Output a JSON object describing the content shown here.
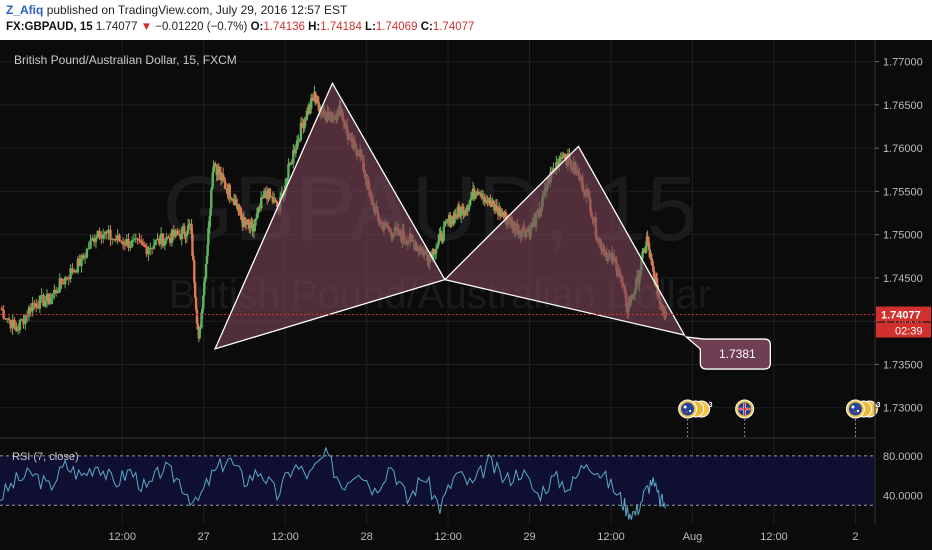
{
  "header": {
    "author": "Z_Afiq",
    "published_text": "published on TradingView.com, July 29, 2016 12:57 EST",
    "symbol": "FX:GBPAUD, 15",
    "last": "1.74077",
    "change": "−0.01220 (−0.7%)",
    "open_label": "O:",
    "open": "1.74136",
    "high_label": "H:",
    "high": "1.74184",
    "low_label": "L:",
    "low": "1.74069",
    "close_label": "C:",
    "close": "1.74077"
  },
  "watermark": {
    "big": "GBPAUD, 15",
    "small": "British Pound/Australian Dollar"
  },
  "chart_data": {
    "type": "line",
    "title": "British Pound/Australian Dollar, 15, FXCM",
    "price_axis": {
      "ylim": [
        1.7265,
        1.7725
      ],
      "ticks": [
        "1.77000",
        "1.76500",
        "1.76000",
        "1.75500",
        "1.75000",
        "1.74500",
        "1.74000",
        "1.73500",
        "1.73000"
      ],
      "tick_values": [
        1.77,
        1.765,
        1.76,
        1.755,
        1.75,
        1.745,
        1.74,
        1.735,
        1.73
      ]
    },
    "time_axis": {
      "labels": [
        "12:00",
        "27",
        "12:00",
        "28",
        "12:00",
        "29",
        "12:00",
        "Aug",
        "12:00",
        "2"
      ],
      "label_positions": [
        0.5,
        1.0,
        1.5,
        2.0,
        2.5,
        3.0,
        3.5,
        4.0,
        4.5,
        5.0
      ],
      "xlim": [
        -0.25,
        5.12
      ]
    },
    "price_series": {
      "name": "GBPAUD",
      "x": [
        -0.25,
        -0.15,
        -0.05,
        0.05,
        0.15,
        0.25,
        0.35,
        0.45,
        0.55,
        0.65,
        0.75,
        0.85,
        0.92,
        0.97,
        1.02,
        1.06,
        1.12,
        1.18,
        1.24,
        1.3,
        1.38,
        1.46,
        1.55,
        1.62,
        1.68,
        1.72,
        1.78,
        1.84,
        1.9,
        1.96,
        2.02,
        2.08,
        2.14,
        2.2,
        2.26,
        2.32,
        2.38,
        2.44,
        2.5,
        2.56,
        2.62,
        2.68,
        2.76,
        2.82,
        2.88,
        2.94,
        3.0,
        3.06,
        3.12,
        3.2,
        3.28,
        3.36,
        3.42,
        3.48,
        3.54,
        3.6,
        3.66,
        3.72,
        3.76,
        3.8,
        3.84
      ],
      "y": [
        1.7415,
        1.739,
        1.742,
        1.7425,
        1.745,
        1.747,
        1.7505,
        1.7495,
        1.749,
        1.7485,
        1.7495,
        1.75,
        1.751,
        1.7375,
        1.748,
        1.7585,
        1.756,
        1.7545,
        1.7515,
        1.7505,
        1.755,
        1.753,
        1.7595,
        1.7635,
        1.766,
        1.7645,
        1.7635,
        1.7645,
        1.7605,
        1.7595,
        1.7545,
        1.7515,
        1.7505,
        1.75,
        1.7495,
        1.7485,
        1.7475,
        1.749,
        1.7515,
        1.7525,
        1.7535,
        1.7555,
        1.7535,
        1.7525,
        1.7515,
        1.7505,
        1.7505,
        1.7525,
        1.7565,
        1.7595,
        1.7575,
        1.7545,
        1.7495,
        1.7475,
        1.7465,
        1.7415,
        1.7445,
        1.7495,
        1.7455,
        1.7425,
        1.7408
      ]
    },
    "current_price": {
      "value": 1.74077,
      "label": "1.74077",
      "timer": "02:39",
      "color": "#d0312d"
    },
    "harmonic_pattern": {
      "left_triangle": [
        [
          1.07,
          1.7368
        ],
        [
          1.79,
          1.7675
        ],
        [
          2.48,
          1.7448
        ]
      ],
      "right_triangle": [
        [
          2.48,
          1.7448
        ],
        [
          3.3,
          1.7602
        ],
        [
          3.95,
          1.7384
        ]
      ],
      "fill": "#7a4558",
      "stroke": "#ffffff"
    },
    "target_callout": {
      "label": "1.7381",
      "x": 3.95,
      "y": 1.7384
    },
    "event_markers": [
      {
        "x": 3.97,
        "icon": "au-flag-icon",
        "count": "3"
      },
      {
        "x": 4.32,
        "icon": "gb-flag-icon",
        "count": ""
      },
      {
        "x": 5.0,
        "icon": "au-flag-icon",
        "count": "3"
      }
    ],
    "rsi": {
      "label": "RSI (7, close)",
      "ylim": [
        10,
        90
      ],
      "levels": [
        80,
        30
      ],
      "ticks": [
        "80.0000",
        "40.0000"
      ],
      "tick_values": [
        80,
        40
      ],
      "color": "#5aa9c8",
      "x": [
        -0.25,
        -0.15,
        -0.05,
        0.05,
        0.15,
        0.25,
        0.35,
        0.45,
        0.55,
        0.65,
        0.75,
        0.85,
        0.95,
        1.05,
        1.15,
        1.25,
        1.35,
        1.45,
        1.55,
        1.65,
        1.75,
        1.85,
        1.95,
        2.05,
        2.15,
        2.25,
        2.35,
        2.45,
        2.55,
        2.65,
        2.75,
        2.85,
        2.95,
        3.05,
        3.15,
        3.25,
        3.35,
        3.45,
        3.55,
        3.6,
        3.65,
        3.7,
        3.75,
        3.8,
        3.84
      ],
      "y": [
        38,
        55,
        62,
        48,
        70,
        60,
        72,
        52,
        65,
        45,
        68,
        55,
        30,
        60,
        78,
        55,
        65,
        40,
        70,
        60,
        82,
        50,
        68,
        45,
        72,
        35,
        60,
        28,
        62,
        50,
        74,
        55,
        65,
        40,
        58,
        48,
        76,
        60,
        40,
        25,
        22,
        40,
        55,
        35,
        30
      ]
    },
    "colors": {
      "background": "#0b0b0b",
      "up": "#5fb35f",
      "down": "#e07a55",
      "grid": "#1f1f24",
      "price_line": "#d0312d"
    }
  }
}
